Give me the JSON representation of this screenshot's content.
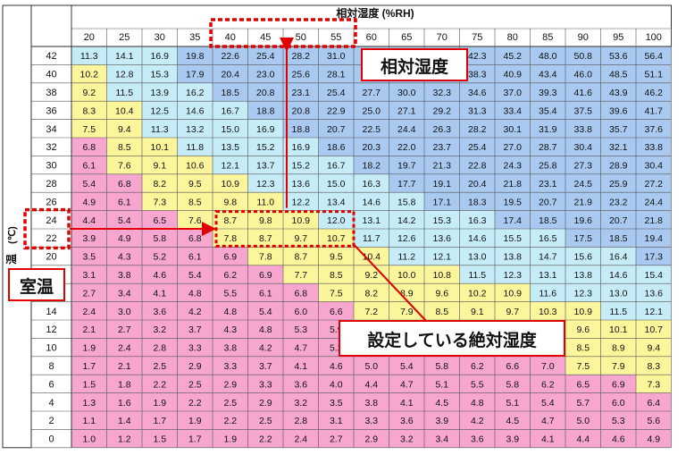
{
  "chart_data": {
    "type": "heatmap",
    "title": "相対湿度 (%RH)",
    "row_axis_label": "温度 (℃)",
    "row_axis_symbol": "(℃)",
    "row_axis_char": "温",
    "humidity": [
      20,
      25,
      30,
      35,
      40,
      45,
      50,
      55,
      60,
      65,
      70,
      75,
      80,
      85,
      90,
      95,
      100
    ],
    "temperature": [
      42,
      40,
      38,
      36,
      34,
      32,
      30,
      28,
      26,
      24,
      22,
      20,
      18,
      16,
      14,
      12,
      10,
      8,
      6,
      4,
      2,
      0
    ],
    "values": [
      [
        11.3,
        14.1,
        16.9,
        19.8,
        22.6,
        25.4,
        28.2,
        31.0,
        33.8,
        36.7,
        39.5,
        42.3,
        45.2,
        48.0,
        50.8,
        53.6,
        56.4
      ],
      [
        10.2,
        12.8,
        15.3,
        17.9,
        20.4,
        23.0,
        25.6,
        28.1,
        30.7,
        33.2,
        35.8,
        38.3,
        40.9,
        43.4,
        46.0,
        48.5,
        51.1
      ],
      [
        9.2,
        11.5,
        13.9,
        16.2,
        18.5,
        20.8,
        23.1,
        25.4,
        27.7,
        30.0,
        32.3,
        34.6,
        37.0,
        39.3,
        41.6,
        43.9,
        46.2
      ],
      [
        8.3,
        10.4,
        12.5,
        14.6,
        16.7,
        18.8,
        20.8,
        22.9,
        25.0,
        27.1,
        29.2,
        31.3,
        33.4,
        35.4,
        37.5,
        39.6,
        41.7
      ],
      [
        7.5,
        9.4,
        11.3,
        13.2,
        15.0,
        16.9,
        18.8,
        20.7,
        22.5,
        24.4,
        26.3,
        28.2,
        30.1,
        31.9,
        33.8,
        35.7,
        37.6
      ],
      [
        6.8,
        8.5,
        10.1,
        11.8,
        13.5,
        15.2,
        16.9,
        18.6,
        20.3,
        22.0,
        23.7,
        25.4,
        27.0,
        28.7,
        30.4,
        32.1,
        33.8
      ],
      [
        6.1,
        7.6,
        9.1,
        10.6,
        12.1,
        13.7,
        15.2,
        16.7,
        18.2,
        19.7,
        21.3,
        22.8,
        24.3,
        25.8,
        27.3,
        28.9,
        30.4
      ],
      [
        5.4,
        6.8,
        8.2,
        9.5,
        10.9,
        12.3,
        13.6,
        15.0,
        16.3,
        17.7,
        19.1,
        20.4,
        21.8,
        23.1,
        24.5,
        25.9,
        27.2
      ],
      [
        4.9,
        6.1,
        7.3,
        8.5,
        9.8,
        11.0,
        12.2,
        13.4,
        14.6,
        15.8,
        17.1,
        18.3,
        19.5,
        20.7,
        21.9,
        23.2,
        24.4
      ],
      [
        4.4,
        5.4,
        6.5,
        7.6,
        8.7,
        9.8,
        10.9,
        12.0,
        13.1,
        14.2,
        15.3,
        16.3,
        17.4,
        18.5,
        19.6,
        20.7,
        21.8
      ],
      [
        3.9,
        4.9,
        5.8,
        6.8,
        7.8,
        8.7,
        9.7,
        10.7,
        11.7,
        12.6,
        13.6,
        14.6,
        15.5,
        16.5,
        17.5,
        18.5,
        19.4
      ],
      [
        3.5,
        4.3,
        5.2,
        6.1,
        6.9,
        7.8,
        8.7,
        9.5,
        10.4,
        11.2,
        12.1,
        13.0,
        13.8,
        14.7,
        15.6,
        16.4,
        17.3
      ],
      [
        3.1,
        3.8,
        4.6,
        5.4,
        6.2,
        6.9,
        7.7,
        8.5,
        9.2,
        10.0,
        10.8,
        11.5,
        12.3,
        13.1,
        13.8,
        14.6,
        15.4
      ],
      [
        2.7,
        3.4,
        4.1,
        4.8,
        5.5,
        6.1,
        6.8,
        7.5,
        8.2,
        8.9,
        9.6,
        10.2,
        10.9,
        11.6,
        12.3,
        13.0,
        13.6
      ],
      [
        2.4,
        3.0,
        3.6,
        4.2,
        4.8,
        5.4,
        6.0,
        6.6,
        7.2,
        7.9,
        8.5,
        9.1,
        9.7,
        10.3,
        10.9,
        11.5,
        12.1
      ],
      [
        2.1,
        2.7,
        3.2,
        3.7,
        4.3,
        4.8,
        5.3,
        5.9,
        6.4,
        6.9,
        7.5,
        8.0,
        8.5,
        9.1,
        9.6,
        10.1,
        10.7
      ],
      [
        1.9,
        2.4,
        2.8,
        3.3,
        3.8,
        4.2,
        4.7,
        5.2,
        5.6,
        6.1,
        6.6,
        7.0,
        7.5,
        8.0,
        8.5,
        8.9,
        9.4
      ],
      [
        1.7,
        2.1,
        2.5,
        2.9,
        3.3,
        3.7,
        4.1,
        4.6,
        5.0,
        5.4,
        5.8,
        6.2,
        6.6,
        7.0,
        7.5,
        7.9,
        8.3
      ],
      [
        1.5,
        1.8,
        2.2,
        2.5,
        2.9,
        3.3,
        3.6,
        4.0,
        4.4,
        4.7,
        5.1,
        5.5,
        5.8,
        6.2,
        6.5,
        6.9,
        7.3
      ],
      [
        1.3,
        1.6,
        1.9,
        2.2,
        2.5,
        2.9,
        3.2,
        3.5,
        3.8,
        4.1,
        4.5,
        4.8,
        5.1,
        5.4,
        5.7,
        6.0,
        6.4
      ],
      [
        1.1,
        1.4,
        1.7,
        1.9,
        2.2,
        2.5,
        2.8,
        3.1,
        3.3,
        3.6,
        3.9,
        4.2,
        4.5,
        4.7,
        5.0,
        5.3,
        5.6
      ],
      [
        1.0,
        1.2,
        1.5,
        1.7,
        1.9,
        2.2,
        2.4,
        2.7,
        2.9,
        3.2,
        3.4,
        3.6,
        3.9,
        4.1,
        4.4,
        4.6,
        4.9
      ]
    ],
    "color_bands": [
      {
        "max": 7.0,
        "color": "#f7a6cf"
      },
      {
        "max": 11.0,
        "color": "#fbf59c"
      },
      {
        "max": 17.0,
        "color": "#c6ecf8"
      },
      {
        "max": 999,
        "color": "#a9c9f0"
      }
    ],
    "grid": true,
    "highlights": {
      "humidity_range": [
        40,
        55
      ],
      "room_temperature": [
        24,
        22
      ],
      "set_absolute_humidity": {
        "temperatures": [
          24,
          22
        ],
        "humidity_range": [
          40,
          55
        ]
      }
    },
    "annotations": {
      "relative_humidity": "相対湿度",
      "room_temperature": "室温",
      "set_absolute_humidity": "設定している絶対湿度"
    }
  },
  "colors": {
    "highlight_red": "#e00000",
    "border": "#333333",
    "text": "#111111"
  }
}
